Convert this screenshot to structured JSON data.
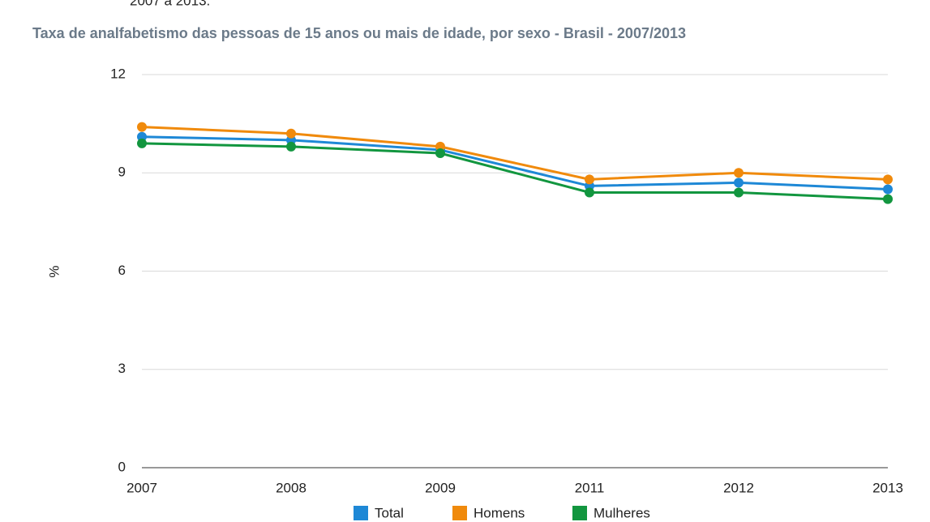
{
  "caption": "2007 a 2013.",
  "chart_data": {
    "type": "line",
    "title": "Taxa de analfabetismo das pessoas de 15 anos ou mais de idade, por sexo - Brasil - 2007/2013",
    "ylabel": "%",
    "categories": [
      "2007",
      "2008",
      "2009",
      "2011",
      "2012",
      "2013"
    ],
    "series": [
      {
        "name": "Total",
        "color": "#1e88d6",
        "values": [
          10.1,
          10.0,
          9.7,
          8.6,
          8.7,
          8.5
        ]
      },
      {
        "name": "Homens",
        "color": "#f08a0c",
        "values": [
          10.4,
          10.2,
          9.8,
          8.8,
          9.0,
          8.8
        ]
      },
      {
        "name": "Mulheres",
        "color": "#12963f",
        "values": [
          9.9,
          9.8,
          9.6,
          8.4,
          8.4,
          8.2
        ]
      }
    ],
    "ylim": [
      0,
      12
    ],
    "yticks": [
      0,
      3,
      6,
      9,
      12
    ],
    "grid": true,
    "legend": "bottom"
  }
}
